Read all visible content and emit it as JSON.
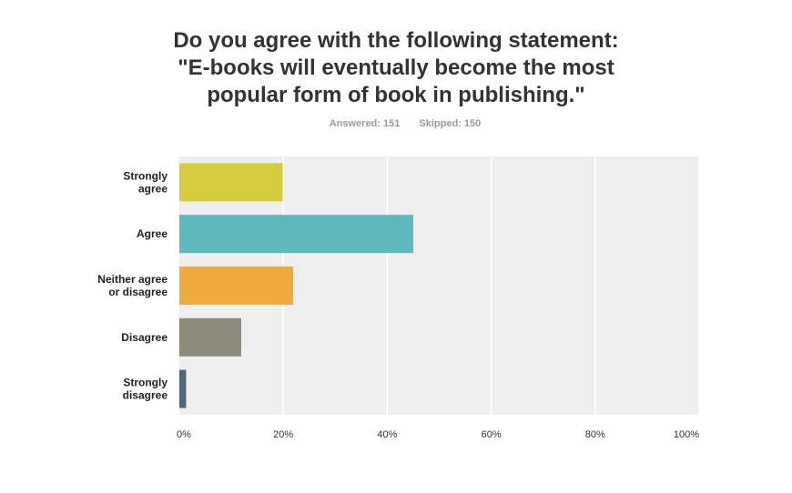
{
  "title_lines": [
    "Do you agree with the following statement:",
    "\"E-books will eventually become the most",
    "popular form of book in publishing.\""
  ],
  "stats": {
    "answered": "Answered: 151",
    "skipped": "Skipped: 150"
  },
  "chart_data": {
    "type": "bar",
    "orientation": "horizontal",
    "title": "Do you agree with the following statement: \"E-books will eventually become the most popular form of book in publishing.\"",
    "categories": [
      [
        "Strongly",
        "agree"
      ],
      [
        "Agree"
      ],
      [
        "Neither agree",
        "or disagree"
      ],
      [
        "Disagree"
      ],
      [
        "Strongly",
        "disagree"
      ]
    ],
    "values": [
      19.9,
      45.0,
      21.9,
      11.9,
      1.3
    ],
    "colors": [
      "#d5cd3d",
      "#5fb9bc",
      "#efac3d",
      "#8c8b7c",
      "#4e6879"
    ],
    "xlim": [
      0,
      100
    ],
    "xticks": [
      0,
      20,
      40,
      60,
      80,
      100
    ],
    "xtick_labels": [
      "0%",
      "20%",
      "40%",
      "60%",
      "80%",
      "100%"
    ],
    "plot_background": "#eeeeee",
    "grid": "vertical",
    "grid_color": "#ffffff",
    "legend": "none"
  }
}
